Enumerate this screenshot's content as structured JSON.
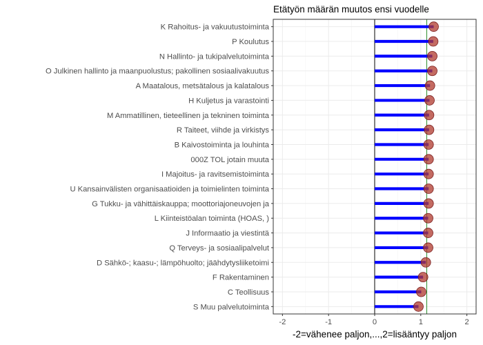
{
  "chart_data": {
    "type": "lollipop",
    "orientation": "horizontal",
    "title": "Etätyön määrän muutos ensi vuodelle",
    "xlabel": "-2=vähenee paljon,...,2=lisääntyy paljon",
    "ylabel": "",
    "xlim": [
      -2.2,
      2.2
    ],
    "xticks": [
      -2,
      -1,
      0,
      1,
      2
    ],
    "reference_lines": [
      0,
      1.13
    ],
    "grid": true,
    "categories": [
      "K Rahoitus- ja vakuutustoiminta",
      "P Koulutus",
      "N Hallinto- ja tukipalvelutoiminta",
      "O Julkinen hallinto ja maanpuolustus; pakollinen sosiaalivakuutus",
      "A Maatalous, metsätalous ja kalatalous",
      "H Kuljetus ja varastointi",
      "M Ammatillinen, tieteellinen ja tekninen toiminta",
      "R Taiteet, viihde ja virkistys",
      "B Kaivostoiminta ja louhinta",
      "000Z TOL jotain muuta",
      "I Majoitus- ja ravitsemistoiminta",
      "U Kansainvälisten organisaatioiden ja toimielinten toiminta",
      "G Tukku- ja vähittäiskauppa; moottoriajoneuvojen ja",
      "L Kiinteistöalan toiminta (HOAS, )",
      "J Informaatio ja viestintä",
      "Q Terveys- ja sosiaalipalvelut",
      "D Sähkö-; kaasu-; lämpöhuolto; jäähdytysliiketoimi",
      "F Rakentaminen",
      "C Teollisuus",
      "S Muu palvelutoiminta"
    ],
    "values": [
      1.28,
      1.27,
      1.25,
      1.25,
      1.2,
      1.19,
      1.18,
      1.18,
      1.17,
      1.17,
      1.17,
      1.17,
      1.17,
      1.16,
      1.16,
      1.16,
      1.11,
      1.05,
      1.01,
      0.95
    ],
    "colors": {
      "segment": "#0000ff",
      "point_fill": "#b03a2e",
      "point_stroke": "#7a1f1f",
      "zero_line": "#000000",
      "mean_line": "#2d8f2d",
      "grid_major": "#ebebeb",
      "grid_minor": "#f5f5f5",
      "panel_border": "#333333"
    }
  }
}
